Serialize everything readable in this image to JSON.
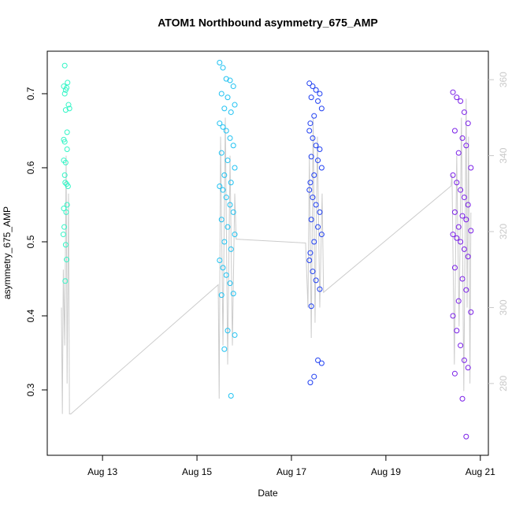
{
  "chart_data": {
    "type": "scatter",
    "title": "ATOM1 Northbound asymmetry_675_AMP",
    "xlabel": "Date",
    "ylabel": "asymmetry_675_AMP",
    "xlim": [
      11.83,
      21.17
    ],
    "xticks": [
      {
        "value": 13,
        "label": "Aug 13"
      },
      {
        "value": 15,
        "label": "Aug 15"
      },
      {
        "value": 17,
        "label": "Aug 17"
      },
      {
        "value": 19,
        "label": "Aug 19"
      },
      {
        "value": 21,
        "label": "Aug 21"
      }
    ],
    "ylim": [
      0.2117,
      0.7574
    ],
    "yticks": [
      0.3,
      0.4,
      0.5,
      0.6,
      0.7
    ],
    "y2lim": [
      261.1,
      367.5
    ],
    "y2ticks": [
      280,
      300,
      320,
      340,
      360
    ],
    "series": [
      {
        "color": "#33f5c6",
        "x": [
          12.2,
          12.18,
          12.22,
          12.2,
          12.26,
          12.24,
          12.28,
          12.3,
          12.22,
          12.25,
          12.18,
          12.2,
          12.25,
          12.18,
          12.22,
          12.2,
          12.24,
          12.27,
          12.21,
          12.25,
          12.18,
          12.23,
          12.19,
          12.17,
          12.22,
          12.24,
          12.21
        ],
        "values": [
          0.738,
          0.71,
          0.705,
          0.7,
          0.715,
          0.708,
          0.685,
          0.68,
          0.678,
          0.648,
          0.638,
          0.635,
          0.625,
          0.61,
          0.607,
          0.59,
          0.578,
          0.575,
          0.58,
          0.55,
          0.545,
          0.54,
          0.52,
          0.51,
          0.496,
          0.476,
          0.447
        ]
      },
      {
        "color": "#1fc2f2",
        "x": [
          15.48,
          15.55,
          15.62,
          15.7,
          15.77,
          15.52,
          15.65,
          15.8,
          15.58,
          15.72,
          15.48,
          15.55,
          15.62,
          15.7,
          15.77,
          15.52,
          15.65,
          15.8,
          15.58,
          15.72,
          15.48,
          15.55,
          15.62,
          15.7,
          15.77,
          15.52,
          15.65,
          15.8,
          15.58,
          15.72,
          15.48,
          15.55,
          15.62,
          15.7,
          15.77,
          15.52,
          15.65,
          15.8,
          15.58,
          15.72
        ],
        "values": [
          0.742,
          0.735,
          0.72,
          0.718,
          0.71,
          0.7,
          0.695,
          0.685,
          0.68,
          0.675,
          0.66,
          0.655,
          0.65,
          0.64,
          0.63,
          0.62,
          0.61,
          0.6,
          0.59,
          0.58,
          0.575,
          0.57,
          0.56,
          0.55,
          0.54,
          0.53,
          0.52,
          0.51,
          0.5,
          0.49,
          0.475,
          0.465,
          0.455,
          0.444,
          0.43,
          0.428,
          0.38,
          0.374,
          0.355,
          0.292
        ]
      },
      {
        "color": "#1f3ff2",
        "x": [
          17.38,
          17.45,
          17.52,
          17.6,
          17.42,
          17.56,
          17.64,
          17.48,
          17.4,
          17.38,
          17.45,
          17.52,
          17.6,
          17.42,
          17.56,
          17.64,
          17.48,
          17.4,
          17.38,
          17.45,
          17.52,
          17.6,
          17.42,
          17.56,
          17.64,
          17.48,
          17.4,
          17.38,
          17.45,
          17.52,
          17.6,
          17.42,
          17.56,
          17.64,
          17.48,
          17.4
        ],
        "values": [
          0.714,
          0.71,
          0.705,
          0.7,
          0.695,
          0.69,
          0.68,
          0.67,
          0.66,
          0.65,
          0.64,
          0.63,
          0.625,
          0.615,
          0.61,
          0.6,
          0.59,
          0.58,
          0.57,
          0.56,
          0.55,
          0.54,
          0.53,
          0.52,
          0.51,
          0.5,
          0.485,
          0.475,
          0.46,
          0.448,
          0.436,
          0.413,
          0.34,
          0.336,
          0.318,
          0.31
        ]
      },
      {
        "color": "#7a1fe8",
        "x": [
          20.42,
          20.5,
          20.58,
          20.66,
          20.74,
          20.46,
          20.62,
          20.7,
          20.54,
          20.8,
          20.42,
          20.5,
          20.58,
          20.66,
          20.74,
          20.46,
          20.62,
          20.7,
          20.54,
          20.8,
          20.42,
          20.5,
          20.58,
          20.66,
          20.74,
          20.46,
          20.62,
          20.7,
          20.54,
          20.8,
          20.42,
          20.5,
          20.58,
          20.66,
          20.74,
          20.46,
          20.62,
          20.7
        ],
        "values": [
          0.702,
          0.695,
          0.69,
          0.675,
          0.66,
          0.65,
          0.64,
          0.63,
          0.62,
          0.6,
          0.59,
          0.58,
          0.57,
          0.56,
          0.55,
          0.54,
          0.535,
          0.53,
          0.52,
          0.515,
          0.51,
          0.505,
          0.5,
          0.49,
          0.48,
          0.465,
          0.45,
          0.435,
          0.42,
          0.405,
          0.4,
          0.38,
          0.36,
          0.34,
          0.33,
          0.322,
          0.288,
          0.237
        ]
      },
      {
        "type": "line",
        "axis": "y2",
        "color": "#cccccc",
        "x": [
          12.13,
          12.15,
          12.17,
          12.2,
          12.23,
          12.25,
          12.28,
          12.3,
          12.33,
          15.45,
          15.47,
          15.5,
          15.55,
          15.6,
          15.65,
          15.7,
          15.75,
          15.8,
          15.83,
          17.3,
          17.35,
          17.38,
          17.42,
          17.46,
          17.5,
          17.55,
          17.6,
          17.65,
          17.68,
          20.38,
          20.4,
          20.45,
          20.5,
          20.55,
          20.6,
          20.65,
          20.7,
          20.72,
          20.75,
          20.78,
          20.8
        ],
        "values": [
          300,
          272,
          310,
          290,
          340,
          280,
          330,
          272,
          272,
          306,
          276,
          345,
          290,
          350,
          285,
          340,
          290,
          330,
          318,
          317,
          300,
          340,
          292,
          350,
          296,
          345,
          300,
          330,
          304,
          332,
          335,
          285,
          340,
          295,
          350,
          278,
          355,
          300,
          345,
          280,
          325
        ]
      }
    ]
  }
}
